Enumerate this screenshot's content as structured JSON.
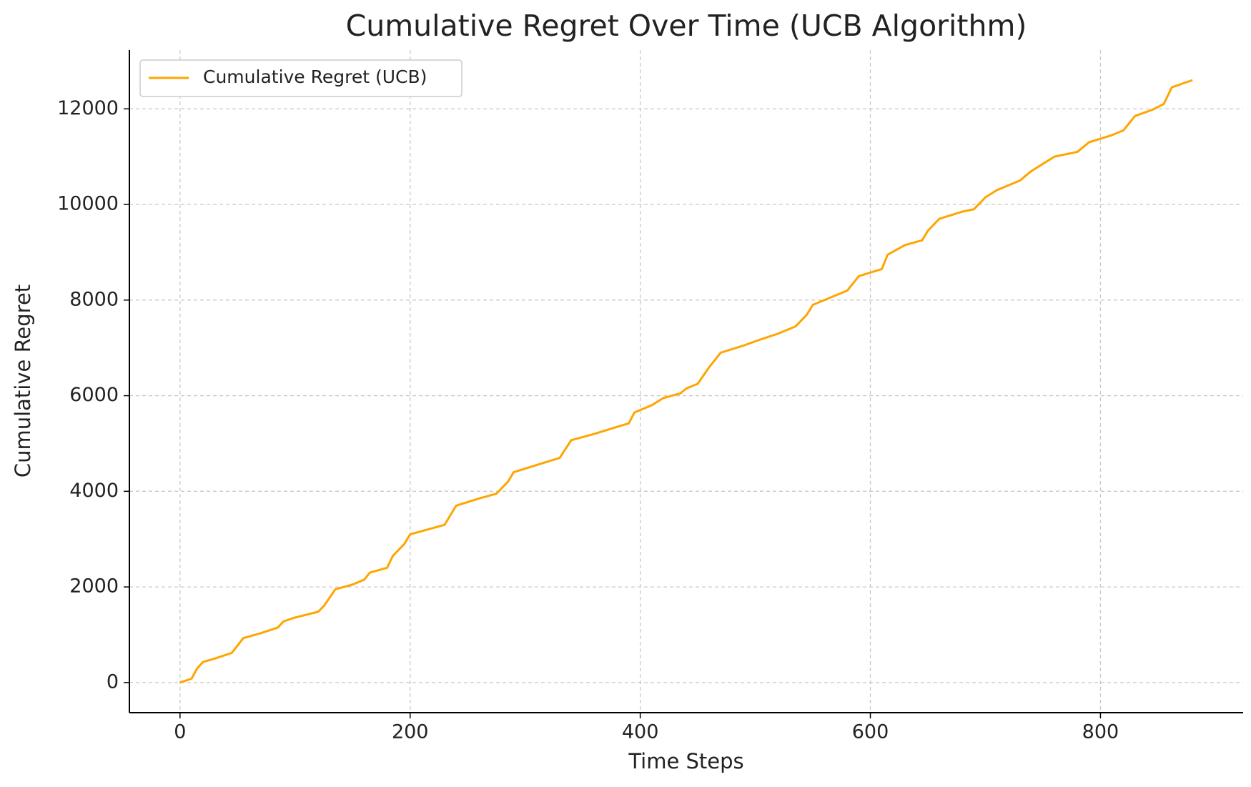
{
  "chart_data": {
    "type": "line",
    "title": "Cumulative Regret Over Time (UCB Algorithm)",
    "x_label": "Time Steps",
    "y_label": "Cumulative Regret",
    "x": [
      0,
      10,
      15,
      20,
      30,
      45,
      55,
      70,
      85,
      90,
      100,
      120,
      125,
      135,
      150,
      160,
      165,
      180,
      185,
      195,
      200,
      230,
      240,
      260,
      275,
      285,
      290,
      310,
      330,
      340,
      360,
      380,
      390,
      395,
      410,
      420,
      435,
      440,
      450,
      460,
      470,
      490,
      505,
      520,
      535,
      545,
      550,
      570,
      580,
      590,
      610,
      615,
      630,
      645,
      650,
      660,
      680,
      690,
      700,
      710,
      720,
      730,
      740,
      750,
      760,
      780,
      790,
      810,
      820,
      830,
      845,
      855,
      862,
      880
    ],
    "series": [
      {
        "name": "Cumulative Regret (UCB)",
        "color": "#ffa500",
        "values": [
          0,
          80,
          300,
          430,
          500,
          620,
          930,
          1030,
          1150,
          1280,
          1360,
          1480,
          1600,
          1950,
          2050,
          2150,
          2300,
          2400,
          2650,
          2900,
          3100,
          3300,
          3700,
          3850,
          3950,
          4200,
          4400,
          4550,
          4700,
          5070,
          5200,
          5350,
          5420,
          5650,
          5800,
          5950,
          6050,
          6150,
          6250,
          6600,
          6900,
          7050,
          7180,
          7300,
          7450,
          7700,
          7900,
          8100,
          8200,
          8500,
          8650,
          8950,
          9150,
          9250,
          9450,
          9700,
          9850,
          9900,
          10150,
          10300,
          10400,
          10500,
          10700,
          10850,
          11000,
          11100,
          11300,
          11450,
          11550,
          11850,
          11980,
          12100,
          12450,
          12600
        ]
      }
    ],
    "xlim": [
      -44,
      924
    ],
    "xticks": [
      0,
      200,
      400,
      600,
      800
    ],
    "ylim": [
      -630,
      13230
    ],
    "yticks": [
      0,
      2000,
      4000,
      6000,
      8000,
      10000,
      12000
    ],
    "grid": true,
    "legend": "upper left"
  }
}
